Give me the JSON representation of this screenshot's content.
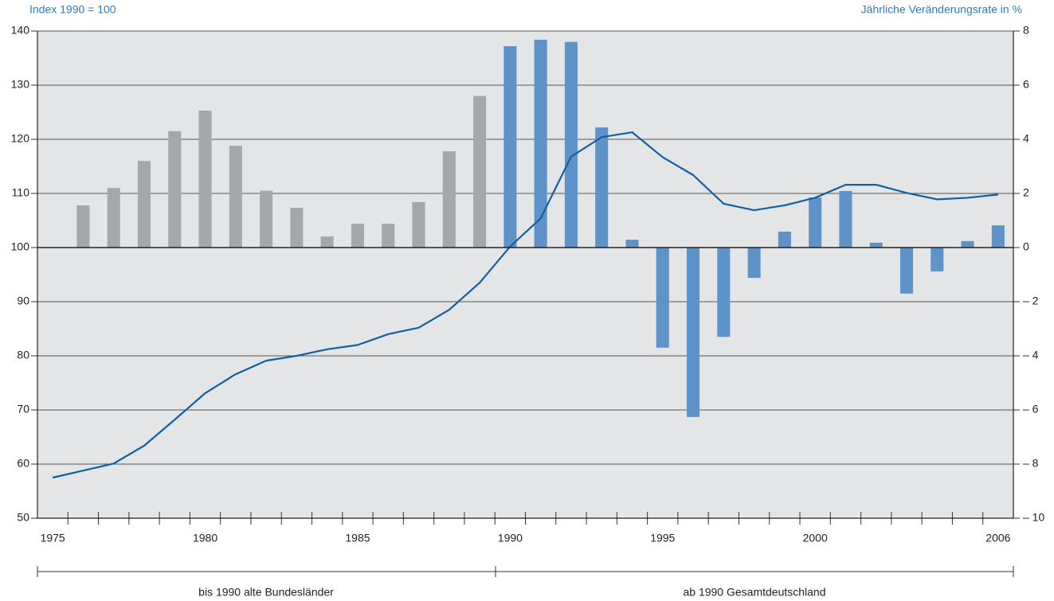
{
  "chart_data": {
    "type": "combo",
    "ylabel": "Index 1990 = 100",
    "y2label": "Jährliche Veränderungsrate in %",
    "x": [
      1975,
      1976,
      1977,
      1978,
      1979,
      1980,
      1981,
      1982,
      1983,
      1984,
      1985,
      1986,
      1987,
      1988,
      1989,
      1990,
      1991,
      1992,
      1993,
      1994,
      1995,
      1996,
      1997,
      1998,
      1999,
      2000,
      2001,
      2002,
      2003,
      2004,
      2005,
      2006
    ],
    "xlim": [
      1974.5,
      2006.5
    ],
    "xticks": [
      1975,
      1980,
      1985,
      1990,
      1995,
      2000,
      2006
    ],
    "ylim": [
      50,
      140
    ],
    "yticks": [
      50,
      60,
      70,
      80,
      90,
      100,
      110,
      120,
      130,
      140
    ],
    "y2lim": [
      -10,
      8
    ],
    "y2ticks": [
      {
        "value": -10,
        "label": "– 10"
      },
      {
        "value": -8,
        "label": "– 8"
      },
      {
        "value": -6,
        "label": "– 6"
      },
      {
        "value": -4,
        "label": "– 4"
      },
      {
        "value": -2,
        "label": "– 2"
      },
      0,
      2,
      4,
      6,
      8
    ],
    "grid": true,
    "series": [
      {
        "type": "bar",
        "axis": "y2",
        "colors": [
          "#a6a7a9",
          "#a6a7a9",
          "#a6a7a9",
          "#a6a7a9",
          "#a6a7a9",
          "#a6a7a9",
          "#a6a7a9",
          "#a6a7a9",
          "#a6a7a9",
          "#a6a7a9",
          "#a6a7a9",
          "#a6a7a9",
          "#a6a7a9",
          "#a6a7a9",
          "#a6a7a9",
          "#5e93c9",
          "#5e93c9",
          "#5e93c9",
          "#5e93c9",
          "#5e93c9",
          "#5e93c9",
          "#5e93c9",
          "#5e93c9",
          "#5e93c9",
          "#5e93c9",
          "#5e93c9",
          "#5e93c9",
          "#5e93c9",
          "#5e93c9",
          "#5e93c9",
          "#5e93c9",
          "#5e93c9"
        ],
        "values": [
          null,
          1.56,
          2.2,
          3.2,
          4.3,
          5.06,
          3.76,
          2.1,
          1.47,
          0.41,
          0.88,
          0.88,
          1.68,
          3.56,
          5.6,
          7.44,
          7.68,
          7.6,
          4.44,
          0.29,
          -3.7,
          -6.26,
          -3.3,
          -1.12,
          0.59,
          1.85,
          2.09,
          0.18,
          -1.7,
          -0.88,
          0.24,
          0.82
        ]
      },
      {
        "type": "line",
        "axis": "y",
        "color": "#135fa3",
        "values": [
          57.5,
          58.8,
          60.1,
          63.4,
          68.2,
          73.1,
          76.6,
          79.1,
          80.0,
          81.2,
          82.0,
          84.0,
          85.2,
          88.5,
          93.5,
          100.2,
          105.4,
          116.8,
          120.4,
          121.3,
          116.7,
          113.4,
          108.1,
          106.9,
          107.8,
          109.2,
          111.6,
          111.6,
          110.1,
          108.9,
          109.2,
          109.8
        ]
      }
    ],
    "annotations": [
      "bis 1990 alte Bundesländer",
      "ab 1990 Gesamtdeutschland"
    ]
  }
}
